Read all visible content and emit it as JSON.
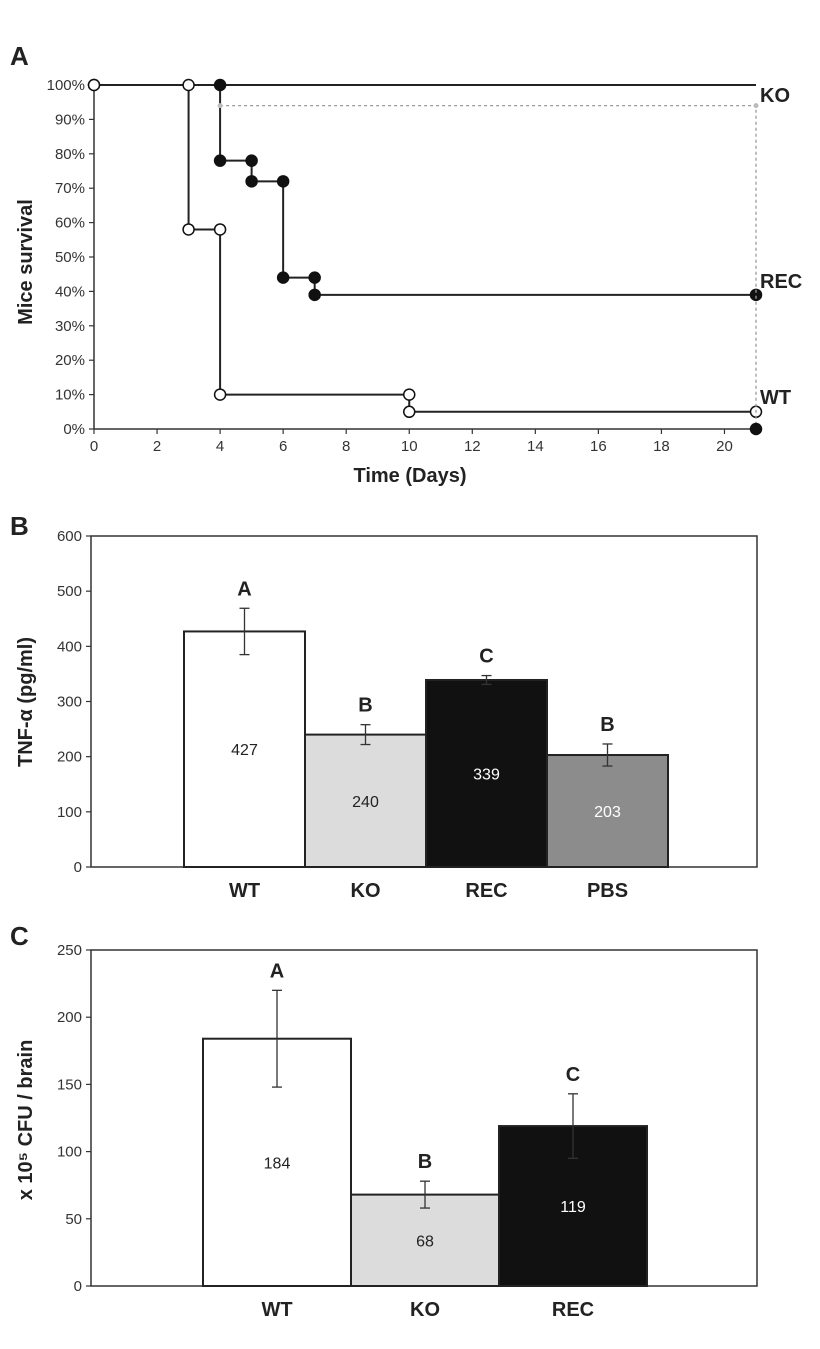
{
  "figure": {
    "panel_letters": [
      "A",
      "B",
      "C"
    ]
  },
  "chart_data": [
    {
      "panel": "A",
      "type": "line",
      "step": true,
      "xlabel": "Time (Days)",
      "ylabel": "Mice survival",
      "xlim": [
        0,
        21
      ],
      "ylim": [
        0,
        100
      ],
      "x_ticks": [
        0,
        2,
        4,
        6,
        8,
        10,
        12,
        14,
        16,
        18,
        20
      ],
      "y_ticks": [
        0,
        10,
        20,
        30,
        40,
        50,
        60,
        70,
        80,
        90,
        100
      ],
      "y_tick_suffix": "%",
      "series": [
        {
          "name": "KO",
          "style": "plain",
          "x": [
            0,
            21
          ],
          "y": [
            100,
            100
          ]
        },
        {
          "name": "REC",
          "style": "filled",
          "x": [
            0,
            4,
            4,
            5,
            5,
            6,
            6,
            7,
            7,
            21
          ],
          "y": [
            100,
            100,
            78,
            78,
            72,
            72,
            44,
            44,
            39,
            39
          ]
        },
        {
          "name": "WT",
          "style": "open",
          "x": [
            0,
            3,
            3,
            4,
            4,
            10,
            10,
            21
          ],
          "y": [
            100,
            100,
            58,
            58,
            10,
            10,
            5,
            5
          ]
        },
        {
          "name": "",
          "style": "dotted",
          "x": [
            4,
            21,
            21
          ],
          "y": [
            94,
            94,
            0
          ]
        }
      ],
      "end_markers": [
        {
          "x": 21,
          "y": 0,
          "style": "filled"
        }
      ],
      "series_labels": [
        "KO",
        "REC",
        "WT"
      ]
    },
    {
      "panel": "B",
      "type": "bar",
      "ylabel": "TNF-α (pg/ml)",
      "ylim": [
        0,
        600
      ],
      "y_ticks": [
        0,
        100,
        200,
        300,
        400,
        500,
        600
      ],
      "categories": [
        "WT",
        "KO",
        "REC",
        "PBS"
      ],
      "values": [
        427,
        240,
        339,
        203
      ],
      "errors": [
        42,
        18,
        8,
        20
      ],
      "value_labels": [
        "427",
        "240",
        "339",
        "203"
      ],
      "significance": [
        "A",
        "B",
        "C",
        "B"
      ],
      "colors": [
        "#ffffff",
        "#dcdcdc",
        "#111111",
        "#8c8c8c"
      ],
      "label_colors": [
        "#222222",
        "#222222",
        "#ffffff",
        "#ffffff"
      ]
    },
    {
      "panel": "C",
      "type": "bar",
      "ylabel": "x 10⁵ CFU / brain",
      "ylim": [
        0,
        250
      ],
      "y_ticks": [
        0,
        50,
        100,
        150,
        200,
        250
      ],
      "categories": [
        "WT",
        "KO",
        "REC"
      ],
      "values": [
        184,
        68,
        119
      ],
      "errors": [
        36,
        10,
        24
      ],
      "value_labels": [
        "184",
        "68",
        "119"
      ],
      "significance": [
        "A",
        "B",
        "C"
      ],
      "colors": [
        "#ffffff",
        "#dcdcdc",
        "#111111"
      ],
      "label_colors": [
        "#222222",
        "#222222",
        "#ffffff"
      ]
    }
  ]
}
